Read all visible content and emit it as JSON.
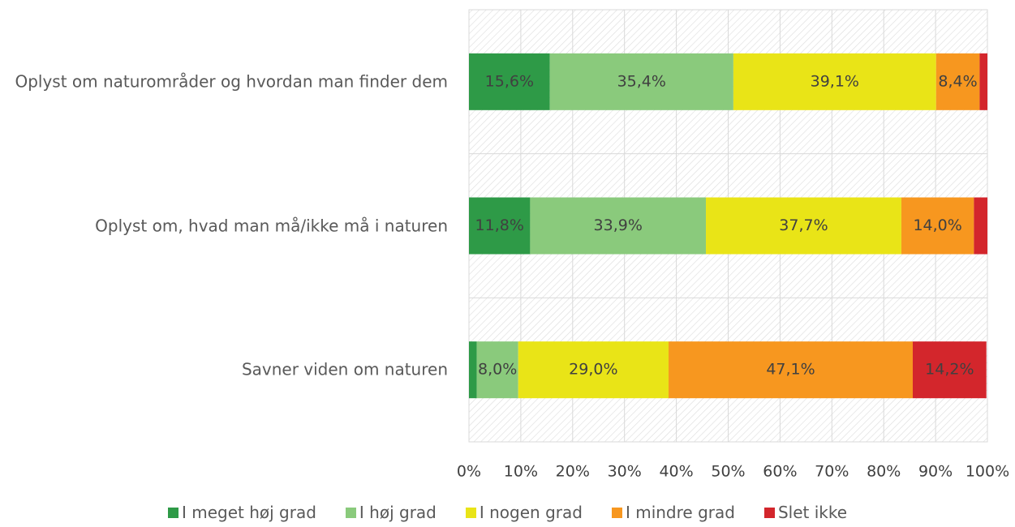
{
  "chart_data": {
    "type": "stacked-bar-horizontal",
    "categories": [
      "Oplyst om naturområder og hvordan man finder dem",
      "Oplyst om, hvad man må/ikke må i naturen",
      "Savner viden om naturen"
    ],
    "series": [
      {
        "name": "I meget høj grad",
        "color": "#2e9a47",
        "values": [
          15.6,
          11.8,
          1.5
        ],
        "value_labels": [
          "15,6%",
          "11,8%",
          null
        ]
      },
      {
        "name": "I høj grad",
        "color": "#8aca7c",
        "values": [
          35.4,
          33.9,
          8.0
        ],
        "value_labels": [
          "35,4%",
          "33,9%",
          "8,0%"
        ]
      },
      {
        "name": "I nogen grad",
        "color": "#e9e417",
        "values": [
          39.1,
          37.7,
          29.0
        ],
        "value_labels": [
          "39,1%",
          "37,7%",
          "29,0%"
        ]
      },
      {
        "name": "I mindre grad",
        "color": "#f7971f",
        "values": [
          8.4,
          14.0,
          47.1
        ],
        "value_labels": [
          "8,4%",
          "14,0%",
          "47,1%"
        ]
      },
      {
        "name": "Slet ikke",
        "color": "#d3262c",
        "values": [
          1.5,
          2.6,
          14.2
        ],
        "value_labels": [
          null,
          null,
          "14,2%"
        ]
      }
    ],
    "xlim": [
      0,
      100
    ],
    "xticks": [
      {
        "value": 0,
        "label": "0%"
      },
      {
        "value": 10,
        "label": "10%"
      },
      {
        "value": 20,
        "label": "20%"
      },
      {
        "value": 30,
        "label": "30%"
      },
      {
        "value": 40,
        "label": "40%"
      },
      {
        "value": 50,
        "label": "50%"
      },
      {
        "value": 60,
        "label": "60%"
      },
      {
        "value": 70,
        "label": "70%"
      },
      {
        "value": 80,
        "label": "80%"
      },
      {
        "value": 90,
        "label": "90%"
      },
      {
        "value": 100,
        "label": "100%"
      }
    ],
    "grid": true,
    "legend": "bottom"
  }
}
